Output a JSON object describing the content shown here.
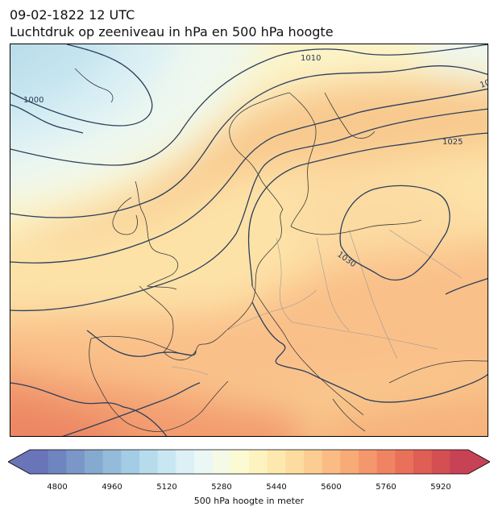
{
  "title": {
    "line1": "09-02-1822 12 UTC",
    "line2": "Luchtdruk op zeeniveau in hPa en 500 hPa hoogte"
  },
  "map": {
    "isobar_labels": [
      "1000",
      "1010",
      "1025",
      "1030",
      "10"
    ],
    "isobar_color": "#2b3f5c",
    "coastline_color": "#3a3a3a",
    "border_color": "#9a9a9a"
  },
  "colorbar": {
    "label": "500 hPa hoogte in meter",
    "ticks": [
      "4800",
      "4960",
      "5120",
      "5280",
      "5440",
      "5600",
      "5760",
      "5920"
    ],
    "colors": [
      "#6a74b8",
      "#6f85c0",
      "#7a97c8",
      "#86a9d0",
      "#94bcda",
      "#a3cde4",
      "#b6dcec",
      "#c9e7f2",
      "#dcf0f6",
      "#ebf7f4",
      "#f5fae6",
      "#fbfad2",
      "#fdf3bf",
      "#fde8ad",
      "#fddca0",
      "#fccd92",
      "#fabc84",
      "#f8aa77",
      "#f5976c",
      "#f08462",
      "#e9715a",
      "#df5f54",
      "#d44f52",
      "#c84255"
    ]
  }
}
